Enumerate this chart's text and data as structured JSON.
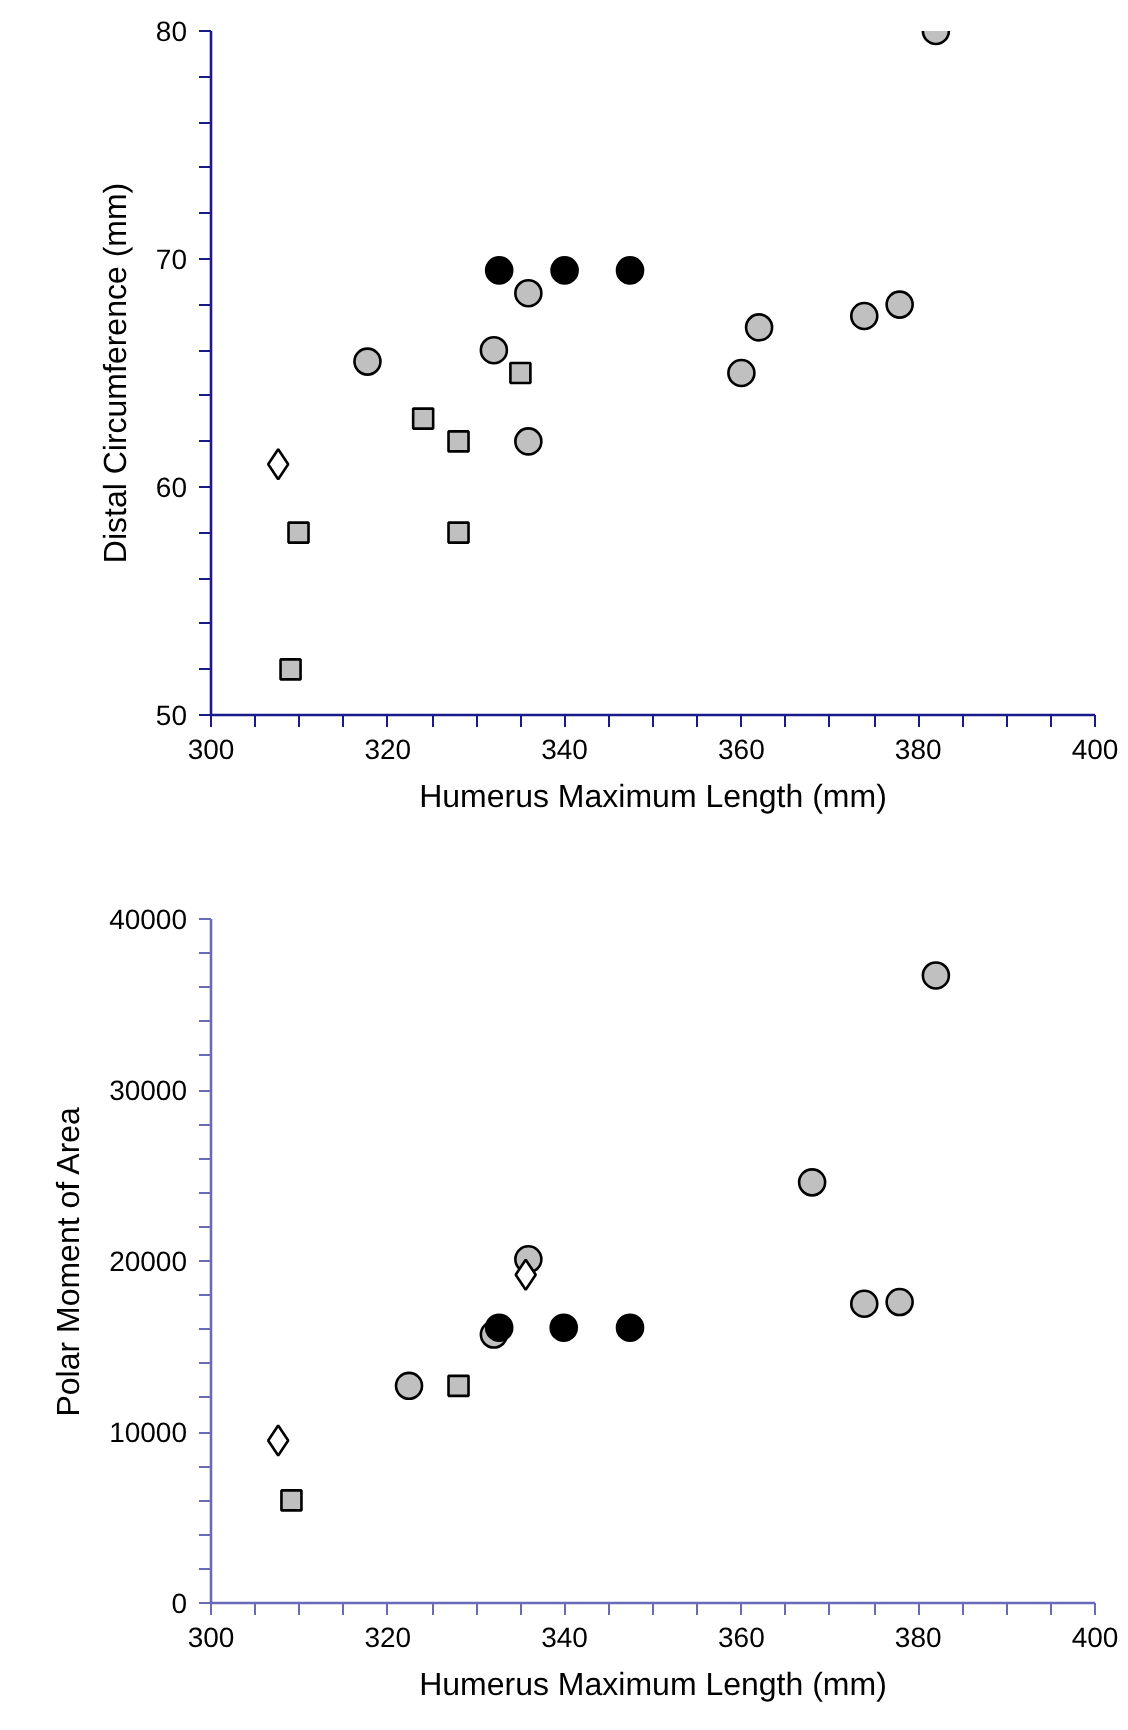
{
  "chart_data": [
    {
      "type": "scatter",
      "xlabel": "Humerus Maximum Length (mm)",
      "ylabel": "Distal Circumference (mm)",
      "xlim": [
        300,
        400
      ],
      "ylim": [
        50,
        80
      ],
      "xticks": [
        300,
        {
          "value": 305,
          "label": null
        },
        {
          "value": 310,
          "label": null
        },
        {
          "value": 315,
          "label": null
        },
        320,
        {
          "value": 325,
          "label": null
        },
        {
          "value": 330,
          "label": null
        },
        {
          "value": 335,
          "label": null
        },
        340,
        {
          "value": 345,
          "label": null
        },
        {
          "value": 350,
          "label": null
        },
        {
          "value": 355,
          "label": null
        },
        360,
        {
          "value": 365,
          "label": null
        },
        {
          "value": 370,
          "label": null
        },
        {
          "value": 375,
          "label": null
        },
        380,
        {
          "value": 385,
          "label": null
        },
        {
          "value": 390,
          "label": null
        },
        {
          "value": 395,
          "label": null
        },
        400
      ],
      "yticks": [
        50,
        {
          "value": 52,
          "label": null
        },
        {
          "value": 54,
          "label": null
        },
        {
          "value": 56,
          "label": null
        },
        {
          "value": 58,
          "label": null
        },
        60,
        {
          "value": 62,
          "label": null
        },
        {
          "value": 64,
          "label": null
        },
        {
          "value": 66,
          "label": null
        },
        {
          "value": 68,
          "label": null
        },
        70,
        {
          "value": 72,
          "label": null
        },
        {
          "value": 74,
          "label": null
        },
        {
          "value": 76,
          "label": null
        },
        {
          "value": 78,
          "label": null
        },
        80
      ],
      "series": [
        {
          "color": "#c0c0c0",
          "marker": "circle",
          "x": [
            382.0,
            317.7,
            335.9,
            332.0,
            335.9,
            360.0,
            362.0,
            373.9,
            377.9
          ],
          "values": [
            80.0,
            65.5,
            68.5,
            66.0,
            62.0,
            65.0,
            67.0,
            67.5,
            68.0
          ]
        },
        {
          "color": "#000000",
          "marker": "circle",
          "x": [
            332.6,
            340.0,
            347.4
          ],
          "values": [
            69.5,
            69.5,
            69.5
          ]
        },
        {
          "color": "#c0c0c0",
          "marker": "square",
          "x": [
            309.9,
            309.0,
            324.0,
            328.0,
            328.0,
            335.0
          ],
          "values": [
            58.0,
            52.0,
            63.0,
            62.0,
            58.0,
            65.0
          ]
        },
        {
          "color": "#ffffff",
          "marker": "diamond",
          "x": [
            307.6
          ],
          "values": [
            61.0
          ]
        }
      ]
    },
    {
      "type": "scatter",
      "xlabel": "Humerus Maximum Length (mm)",
      "ylabel": "Polar Moment of Area",
      "xlim": [
        300,
        400
      ],
      "ylim": [
        0,
        40000
      ],
      "xticks": [
        300,
        {
          "value": 305,
          "label": null
        },
        {
          "value": 310,
          "label": null
        },
        {
          "value": 315,
          "label": null
        },
        320,
        {
          "value": 325,
          "label": null
        },
        {
          "value": 330,
          "label": null
        },
        {
          "value": 335,
          "label": null
        },
        340,
        {
          "value": 345,
          "label": null
        },
        {
          "value": 350,
          "label": null
        },
        {
          "value": 355,
          "label": null
        },
        360,
        {
          "value": 365,
          "label": null
        },
        {
          "value": 370,
          "label": null
        },
        {
          "value": 375,
          "label": null
        },
        380,
        {
          "value": 385,
          "label": null
        },
        {
          "value": 390,
          "label": null
        },
        {
          "value": 395,
          "label": null
        },
        400
      ],
      "yticks": [
        0,
        {
          "value": 2000,
          "label": null
        },
        {
          "value": 4000,
          "label": null
        },
        {
          "value": 6000,
          "label": null
        },
        {
          "value": 8000,
          "label": null
        },
        10000,
        {
          "value": 12000,
          "label": null
        },
        {
          "value": 14000,
          "label": null
        },
        {
          "value": 16000,
          "label": null
        },
        {
          "value": 18000,
          "label": null
        },
        20000,
        {
          "value": 22000,
          "label": null
        },
        {
          "value": 24000,
          "label": null
        },
        {
          "value": 26000,
          "label": null
        },
        {
          "value": 28000,
          "label": null
        },
        30000,
        {
          "value": 32000,
          "label": null
        },
        {
          "value": 34000,
          "label": null
        },
        {
          "value": 36000,
          "label": null
        },
        {
          "value": 38000,
          "label": null
        },
        40000
      ],
      "series": [
        {
          "color": "#c0c0c0",
          "marker": "circle",
          "x": [
            382.0,
            368.0,
            335.9,
            332.0,
            322.4,
            373.9,
            377.9
          ],
          "values": [
            36700,
            24600,
            20100,
            15700,
            12700,
            17500,
            17600
          ]
        },
        {
          "color": "#000000",
          "marker": "circle",
          "x": [
            332.6,
            339.9,
            347.4
          ],
          "values": [
            16100,
            16100,
            16100
          ]
        },
        {
          "color": "#c0c0c0",
          "marker": "square",
          "x": [
            328.0,
            309.1
          ],
          "values": [
            12700,
            6000
          ]
        },
        {
          "color": "#ffffff",
          "marker": "diamond",
          "x": [
            307.6,
            335.6
          ],
          "values": [
            9500,
            19200
          ]
        }
      ]
    }
  ]
}
